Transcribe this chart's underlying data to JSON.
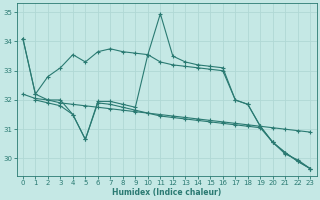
{
  "xlabel": "Humidex (Indice chaleur)",
  "xlim": [
    -0.5,
    23.5
  ],
  "ylim": [
    29.4,
    35.3
  ],
  "yticks": [
    30,
    31,
    32,
    33,
    34,
    35
  ],
  "xticks": [
    0,
    1,
    2,
    3,
    4,
    5,
    6,
    7,
    8,
    9,
    10,
    11,
    12,
    13,
    14,
    15,
    16,
    17,
    18,
    19,
    20,
    21,
    22,
    23
  ],
  "bg_color": "#c5e8e5",
  "grid_color": "#b0d8d5",
  "line_color": "#2a7a72",
  "line1_x": [
    0,
    1,
    2,
    3,
    4,
    5,
    6,
    7,
    8,
    9,
    10,
    11,
    12,
    13,
    14,
    15,
    16,
    17,
    18,
    19,
    20,
    21,
    22,
    23
  ],
  "line1_y": [
    34.1,
    32.2,
    32.8,
    33.1,
    33.55,
    33.3,
    33.65,
    33.75,
    33.65,
    33.6,
    33.55,
    34.95,
    33.5,
    33.3,
    33.2,
    33.15,
    33.1,
    32.0,
    31.85,
    31.1,
    30.55,
    30.15,
    29.95,
    29.65
  ],
  "line2_x": [
    0,
    1,
    2,
    3,
    4,
    5,
    6,
    7,
    8,
    9,
    10,
    11,
    12,
    13,
    14,
    15,
    16,
    17,
    18,
    19,
    20,
    21,
    22,
    23
  ],
  "line2_y": [
    34.1,
    32.2,
    32.0,
    32.0,
    31.5,
    30.65,
    31.95,
    31.95,
    31.85,
    31.75,
    33.55,
    33.3,
    33.2,
    33.15,
    33.1,
    33.05,
    33.0,
    32.0,
    31.85,
    31.1,
    30.55,
    30.2,
    29.9,
    29.65
  ],
  "line3_x": [
    1,
    2,
    3,
    4,
    5,
    6,
    7,
    8,
    9,
    10,
    11,
    12,
    13,
    14,
    15,
    16,
    17,
    18,
    19,
    20,
    21,
    22,
    23
  ],
  "line3_y": [
    32.0,
    31.9,
    31.8,
    31.5,
    30.65,
    31.9,
    31.85,
    31.75,
    31.65,
    31.55,
    31.45,
    31.4,
    31.35,
    31.3,
    31.25,
    31.2,
    31.15,
    31.1,
    31.05,
    30.55,
    30.2,
    29.9,
    29.65
  ],
  "line4_x": [
    0,
    1,
    2,
    3,
    4,
    5,
    6,
    7,
    8,
    9,
    10,
    11,
    12,
    13,
    14,
    15,
    16,
    17,
    18,
    19,
    20,
    21,
    22,
    23
  ],
  "line4_y": [
    32.2,
    32.05,
    32.0,
    31.9,
    31.85,
    31.8,
    31.75,
    31.7,
    31.65,
    31.6,
    31.55,
    31.5,
    31.45,
    31.4,
    31.35,
    31.3,
    31.25,
    31.2,
    31.15,
    31.1,
    31.05,
    31.0,
    30.95,
    30.9
  ]
}
